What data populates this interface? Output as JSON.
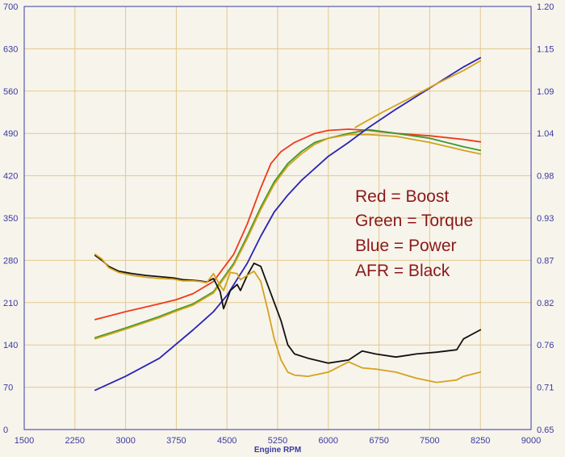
{
  "chart_data": {
    "type": "line",
    "title": "",
    "xlabel": "Engine RPM",
    "ylabel": "",
    "xlim": [
      1500,
      9000
    ],
    "ylim_left": [
      0,
      700
    ],
    "ylim_right": [
      0.65,
      1.2
    ],
    "grid": true,
    "x_ticks": [
      "1500",
      "2250",
      "3000",
      "3750",
      "4500",
      "5250",
      "6000",
      "6750",
      "7500",
      "8250",
      "9000"
    ],
    "left_ticks": [
      "0",
      "70",
      "140",
      "210",
      "280",
      "350",
      "420",
      "490",
      "560",
      "630",
      "700"
    ],
    "right_ticks": [
      "0.65",
      "0.71",
      "0.76",
      "0.82",
      "0.87",
      "0.93",
      "0.98",
      "1.04",
      "1.09",
      "1.15",
      "1.20"
    ],
    "legend": {
      "placement": "right-middle",
      "entries": [
        "Red = Boost",
        "Green = Torque",
        "Blue = Power",
        "AFR = Black"
      ]
    },
    "colors": {
      "red": "#f03a1c",
      "green": "#3c9a2c",
      "blue": "#2b23b8",
      "black": "#111111",
      "gold": "#d4a21c",
      "grid": "#e2c98c",
      "axis_text": "#3a3aa0",
      "legend_text": "#8b1a1a"
    },
    "series": [
      {
        "color_key": "red",
        "x": [
          2550,
          3000,
          3500,
          3750,
          4000,
          4300,
          4600,
          4800,
          5000,
          5150,
          5300,
          5500,
          5800,
          6000,
          6300,
          6600,
          7000,
          7500,
          8000,
          8250
        ],
        "y": [
          182,
          195,
          208,
          215,
          225,
          245,
          290,
          340,
          400,
          440,
          460,
          475,
          490,
          495,
          497,
          495,
          490,
          486,
          480,
          476
        ]
      },
      {
        "color_key": "green",
        "x": [
          2550,
          3000,
          3500,
          3750,
          4000,
          4300,
          4600,
          4800,
          5000,
          5200,
          5400,
          5600,
          5800,
          6000,
          6300,
          6600,
          7000,
          7500,
          8000,
          8250
        ],
        "y": [
          152,
          168,
          187,
          198,
          208,
          228,
          275,
          320,
          368,
          410,
          440,
          460,
          475,
          482,
          490,
          496,
          490,
          482,
          468,
          462
        ]
      },
      {
        "color_key": "gold",
        "x": [
          2550,
          3000,
          3500,
          3750,
          4000,
          4300,
          4600,
          4800,
          5000,
          5200,
          5400,
          5600,
          5800,
          6000,
          6300,
          6600,
          7000,
          7500,
          8000,
          8250
        ],
        "y": [
          150,
          166,
          185,
          196,
          206,
          226,
          272,
          316,
          364,
          406,
          436,
          456,
          472,
          482,
          488,
          488,
          485,
          475,
          462,
          456
        ]
      },
      {
        "color_key": "blue",
        "x": [
          2550,
          3000,
          3500,
          4000,
          4300,
          4500,
          4800,
          5000,
          5200,
          5400,
          5600,
          5800,
          6000,
          6300,
          6600,
          7000,
          7500,
          8000,
          8250
        ],
        "y": [
          65,
          88,
          118,
          165,
          195,
          222,
          275,
          320,
          360,
          388,
          412,
          432,
          452,
          475,
          500,
          530,
          565,
          600,
          615
        ]
      },
      {
        "color_key": "gold",
        "x": [
          6400,
          6800,
          7200,
          7600,
          8000,
          8250
        ],
        "y": [
          500,
          525,
          548,
          572,
          594,
          610
        ]
      },
      {
        "color_key": "black",
        "x": [
          2550,
          2650,
          2750,
          2900,
          3100,
          3300,
          3500,
          3700,
          3850,
          4000,
          4100,
          4200,
          4300,
          4400,
          4450,
          4550,
          4650,
          4700,
          4800,
          4900,
          5000,
          5100,
          5200,
          5300,
          5400,
          5500,
          5700,
          6000,
          6300,
          6500,
          6700,
          7000,
          7300,
          7600,
          7900,
          8000,
          8250
        ],
        "y": [
          288,
          280,
          270,
          262,
          258,
          255,
          253,
          251,
          248,
          247,
          246,
          244,
          250,
          228,
          200,
          230,
          240,
          230,
          255,
          275,
          270,
          240,
          210,
          180,
          140,
          125,
          118,
          110,
          115,
          130,
          125,
          120,
          125,
          128,
          132,
          150,
          165
        ]
      },
      {
        "color_key": "gold",
        "x": [
          2550,
          2650,
          2750,
          2900,
          3100,
          3300,
          3500,
          3700,
          3850,
          4000,
          4100,
          4200,
          4300,
          4400,
          4450,
          4550,
          4650,
          4700,
          4800,
          4900,
          5000,
          5100,
          5200,
          5300,
          5400,
          5500,
          5700,
          6000,
          6300,
          6500,
          6700,
          7000,
          7300,
          7600,
          7900,
          8000,
          8250
        ],
        "y": [
          290,
          282,
          268,
          260,
          255,
          252,
          250,
          249,
          246,
          246,
          245,
          243,
          258,
          238,
          230,
          260,
          258,
          248,
          255,
          262,
          245,
          200,
          150,
          115,
          95,
          90,
          88,
          95,
          112,
          102,
          100,
          95,
          85,
          78,
          82,
          88,
          95
        ]
      }
    ]
  }
}
